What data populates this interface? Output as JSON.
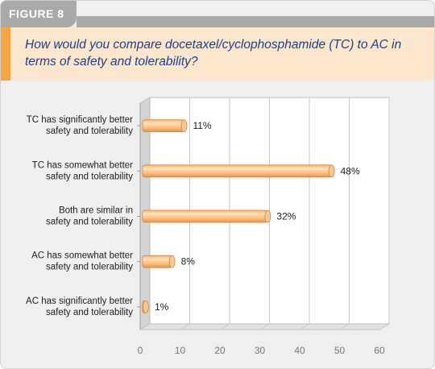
{
  "figure": {
    "label": "FIGURE 8"
  },
  "question": "How would you compare docetaxel/cyclophosphamide (TC) to AC in terms of safety and tolerability?",
  "colors": {
    "bar": "#f7b46a",
    "bar_highlight": "#fde2bd",
    "question_bg": "#fce6cc",
    "accent": "#f7a441",
    "question_text": "#1a3f8c",
    "header": "#a9a9a9"
  },
  "chart_data": {
    "type": "bar",
    "orientation": "horizontal",
    "categories": [
      [
        "TC has significantly better",
        "safety and tolerability"
      ],
      [
        "TC has somewhat better",
        "safety and tolerability"
      ],
      [
        "Both are similar in",
        "safety and tolerability"
      ],
      [
        "AC has somewhat better",
        "safety and tolerability"
      ],
      [
        "AC has significantly better",
        "safety and tolerability"
      ]
    ],
    "values": [
      11,
      48,
      32,
      8,
      1
    ],
    "value_labels": [
      "11%",
      "48%",
      "32%",
      "8%",
      "1%"
    ],
    "xlim": [
      0,
      60
    ],
    "xticks": [
      0,
      10,
      20,
      30,
      40,
      50,
      60
    ],
    "grid": true,
    "style": "3d"
  }
}
